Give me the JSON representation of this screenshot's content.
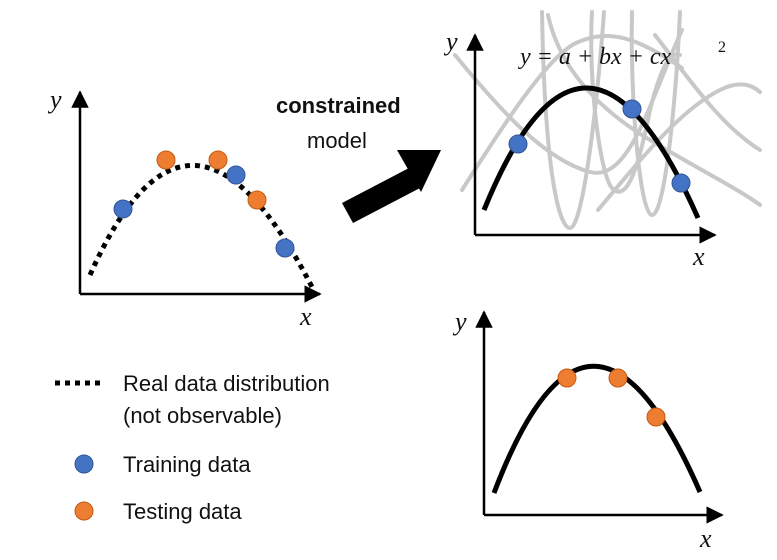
{
  "colors": {
    "training": "#4472C4",
    "training_stroke": "#2F5597",
    "testing": "#ED7D31",
    "testing_stroke": "#C55A11",
    "curve": "#000000",
    "candidate_curves": "#C8C8C8"
  },
  "left_plot": {
    "x_label": "x",
    "y_label": "y",
    "curve_style": "dotted"
  },
  "arrow": {
    "label_bold": "constrained",
    "label": "model"
  },
  "top_right_plot": {
    "x_label": "x",
    "y_label": "y",
    "formula_main": "y = a + bx + cx",
    "formula_exp": "2"
  },
  "bottom_right_plot": {
    "x_label": "x",
    "y_label": "y"
  },
  "legend": {
    "real_data": "Real data distribution",
    "real_data_note": "(not observable)",
    "training": "Training data",
    "testing": "Testing data"
  }
}
